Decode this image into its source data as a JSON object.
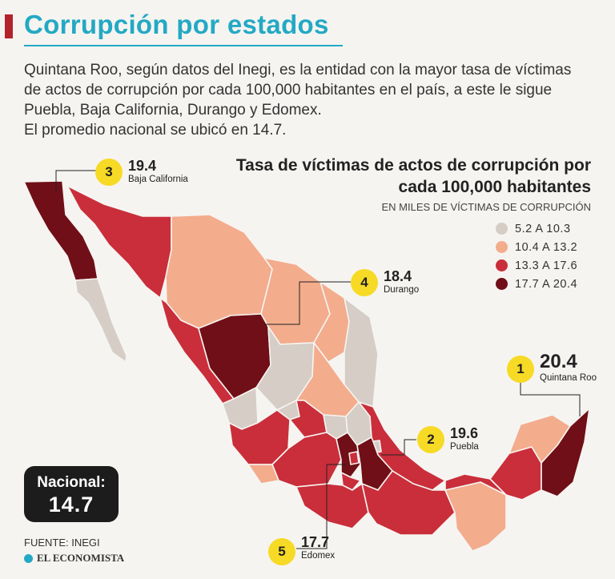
{
  "header": {
    "title": "Corrupción por estados",
    "intro_line1": "Quintana Roo, según datos del Inegi, es la entidad con la mayor tasa de víctimas de actos de corrupción por cada 100,000 habitantes en el país, a este le sigue Puebla, Baja California, Durango y Edomex.",
    "intro_line2": "El promedio nacional se ubicó en 14.7."
  },
  "legend": {
    "title": "Tasa de víctimas de actos de corrupción por cada 100,000 habitantes",
    "subtitle": "EN MILES DE VÍCTIMAS DE CORRUPCIÓN",
    "items": [
      {
        "label": "5.2 A 10.3",
        "color": "#d5cdc6"
      },
      {
        "label": "10.4 A 13.2",
        "color": "#f3ac8c"
      },
      {
        "label": "13.3 A 17.6",
        "color": "#c92e3a"
      },
      {
        "label": "17.7 A 20.4",
        "color": "#700f17"
      }
    ]
  },
  "callouts": [
    {
      "rank": "1",
      "value": "20.4",
      "state": "Quintana Roo"
    },
    {
      "rank": "2",
      "value": "19.6",
      "state": "Puebla"
    },
    {
      "rank": "3",
      "value": "19.4",
      "state": "Baja California"
    },
    {
      "rank": "4",
      "value": "18.4",
      "state": "Durango"
    },
    {
      "rank": "5",
      "value": "17.7",
      "state": "Edomex"
    }
  ],
  "national": {
    "label": "Nacional:",
    "value": "14.7"
  },
  "footer": {
    "source": "FUENTE: INEGI",
    "logo": "EL ECONOMISTA"
  },
  "colors": {
    "accent": "#23a9c4",
    "badge": "#f7da25",
    "bar": "#b3232e"
  }
}
